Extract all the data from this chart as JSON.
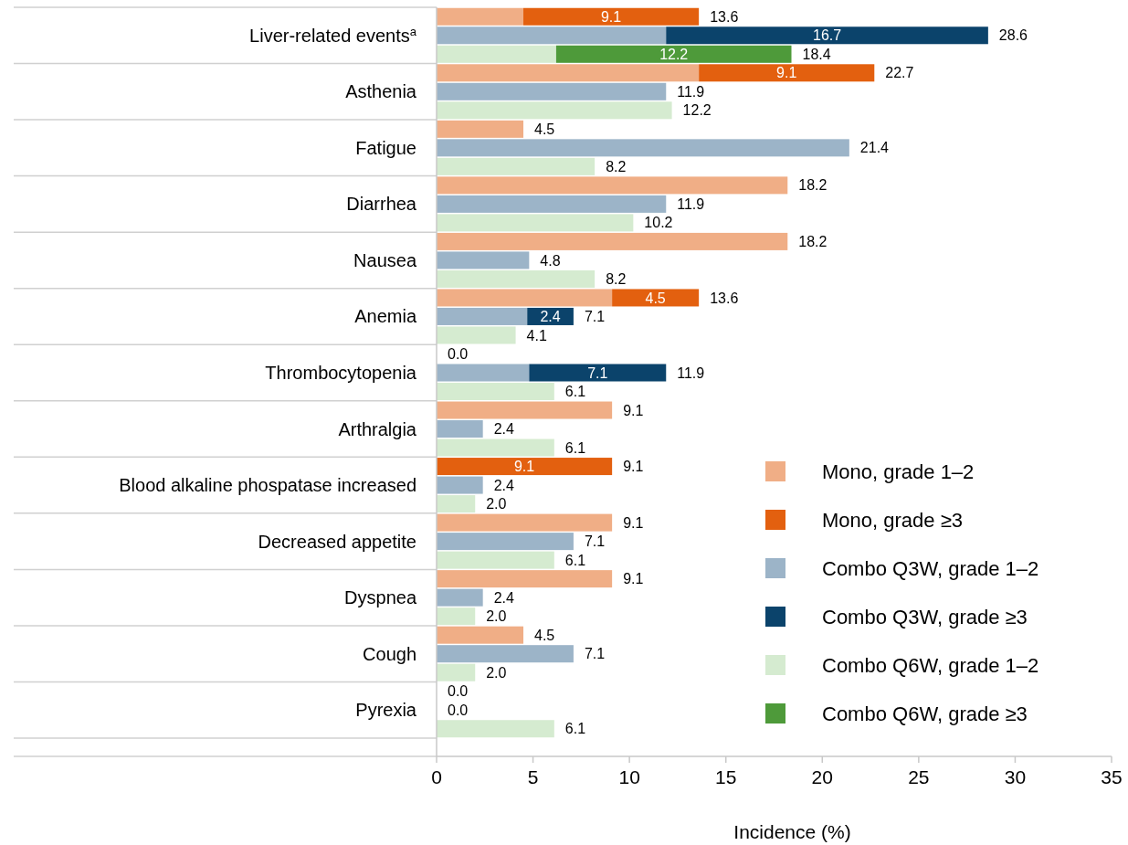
{
  "chart_data": {
    "type": "bar",
    "orientation": "horizontal",
    "stacked": true,
    "xlabel": "Incidence (%)",
    "xlim": [
      0,
      35
    ],
    "xticks": [
      0,
      5,
      10,
      15,
      20,
      25,
      30,
      35
    ],
    "legend": "bottom right",
    "grid": false,
    "categories": [
      null,
      "Liver-related events$^{a}$",
      null,
      null,
      "Asthenia",
      null,
      null,
      "Fatigue",
      null,
      null,
      "Diarrhea",
      null,
      null,
      "Nausea",
      null,
      null,
      "Anemia",
      null,
      null,
      "Thrombocytopenia",
      null,
      null,
      "Arthralgia",
      null,
      null,
      "Blood alkaline phospatase increased",
      null,
      null,
      "Decreased appetite",
      null,
      null,
      "Dyspnea",
      null,
      null,
      "Cough",
      null,
      null,
      "Pyrexia",
      null
    ],
    "series": [
      {
        "name": "Mono, grade 1–2",
        "color": "#f0ae86",
        "values": [
          4.5,
          null,
          null,
          13.6,
          null,
          null,
          4.5,
          null,
          null,
          18.2,
          null,
          null,
          18.2,
          null,
          null,
          9.1,
          null,
          null,
          0,
          null,
          null,
          9.1,
          null,
          null,
          0,
          null,
          null,
          9.1,
          null,
          null,
          9.1,
          null,
          null,
          4.5,
          null,
          null,
          0,
          null,
          null
        ]
      },
      {
        "name": "Mono, grade ≥3",
        "color": "#e3600f",
        "values": [
          9.1,
          null,
          null,
          9.1,
          null,
          null,
          null,
          null,
          null,
          null,
          null,
          null,
          null,
          null,
          null,
          4.5,
          null,
          null,
          null,
          null,
          null,
          null,
          null,
          null,
          9.1,
          null,
          null,
          null,
          null,
          null,
          null,
          null,
          null,
          null,
          null,
          null,
          null,
          null,
          null
        ],
        "value_labels": [
          "9.1",
          null,
          null,
          "9.1",
          null,
          null,
          null,
          null,
          null,
          null,
          null,
          null,
          null,
          null,
          null,
          "4.5",
          null,
          null,
          null,
          null,
          null,
          null,
          null,
          null,
          "9.1",
          null,
          null,
          null,
          null,
          null,
          null,
          null,
          null,
          null,
          null,
          null,
          null,
          null,
          null
        ]
      },
      {
        "name": "Combo Q3W, grade 1–2",
        "color": "#9cb4c8",
        "values": [
          null,
          11.9,
          null,
          null,
          11.9,
          null,
          null,
          21.4,
          null,
          null,
          11.9,
          null,
          null,
          4.8,
          null,
          null,
          4.7,
          null,
          null,
          4.8,
          null,
          null,
          2.4,
          null,
          null,
          2.4,
          null,
          null,
          7.1,
          null,
          null,
          2.4,
          null,
          null,
          7.1,
          null,
          null,
          0,
          null
        ]
      },
      {
        "name": "Combo Q3W, grade ≥3",
        "color": "#0b436b",
        "values": [
          null,
          16.7,
          null,
          null,
          null,
          null,
          null,
          null,
          null,
          null,
          null,
          null,
          null,
          null,
          null,
          null,
          2.4,
          null,
          null,
          7.1,
          null,
          null,
          null,
          null,
          null,
          null,
          null,
          null,
          null,
          null,
          null,
          null,
          null,
          null,
          null,
          null,
          null,
          null,
          null
        ],
        "value_labels": [
          null,
          "16.7",
          null,
          null,
          null,
          null,
          null,
          null,
          null,
          null,
          null,
          null,
          null,
          null,
          null,
          null,
          "2.4",
          null,
          null,
          "7.1",
          null,
          null,
          null,
          null,
          null,
          null,
          null,
          null,
          null,
          null,
          null,
          null,
          null,
          null,
          null,
          null,
          null,
          null,
          null
        ]
      },
      {
        "name": "Combo Q6W, grade 1–2",
        "color": "#d5ebd0",
        "values": [
          null,
          null,
          6.2,
          null,
          null,
          12.2,
          null,
          null,
          8.2,
          null,
          null,
          10.2,
          null,
          null,
          8.2,
          null,
          null,
          4.1,
          null,
          null,
          6.1,
          null,
          null,
          6.1,
          null,
          null,
          2.0,
          null,
          null,
          6.1,
          null,
          null,
          2.0,
          null,
          null,
          2.0,
          null,
          null,
          6.1
        ]
      },
      {
        "name": "Combo Q6W, grade ≥3",
        "color": "#4e9a3a",
        "values": [
          null,
          null,
          12.2,
          null,
          null,
          null,
          null,
          null,
          null,
          null,
          null,
          null,
          null,
          null,
          null,
          null,
          null,
          null,
          null,
          null,
          null,
          null,
          null,
          null,
          null,
          null,
          null,
          null,
          null,
          null,
          null,
          null,
          null,
          null,
          null,
          null,
          null,
          null,
          null
        ],
        "value_labels": [
          null,
          null,
          "12.2",
          null,
          null,
          null,
          null,
          null,
          null,
          null,
          null,
          null,
          null,
          null,
          null,
          null,
          null,
          null,
          null,
          null,
          null,
          null,
          null,
          null,
          null,
          null,
          null,
          null,
          null,
          null,
          null,
          null,
          null,
          null,
          null,
          null,
          null,
          null,
          null
        ]
      }
    ],
    "totals": [
      "13.6",
      "28.6",
      "18.4",
      "22.7",
      "11.9",
      "12.2",
      "4.5",
      "21.4",
      "8.2",
      "18.2",
      "11.9",
      "10.2",
      "18.2",
      "4.8",
      "8.2",
      "13.6",
      "7.1",
      "4.1",
      "0.0",
      "11.9",
      "6.1",
      "9.1",
      "2.4",
      "6.1",
      "9.1",
      "2.4",
      "2.0",
      "9.1",
      "7.1",
      "6.1",
      "9.1",
      "2.4",
      "2.0",
      "4.5",
      "7.1",
      "2.0",
      "0.0",
      "0.0",
      "6.1"
    ]
  }
}
